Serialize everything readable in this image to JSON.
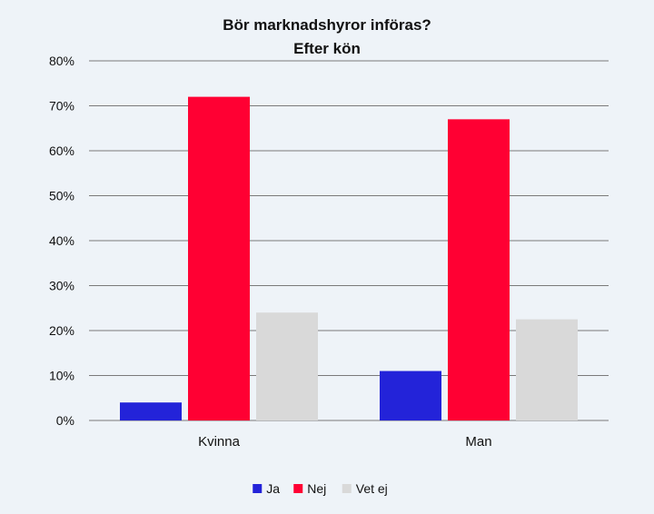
{
  "chart_data": {
    "type": "bar",
    "title": "Bör marknadshyror införas?",
    "subtitle": "Efter kön",
    "categories": [
      "Kvinna",
      "Man"
    ],
    "series": [
      {
        "name": "Ja",
        "color": "#2323d9",
        "values": [
          4,
          11
        ]
      },
      {
        "name": "Nej",
        "color": "#ff0033",
        "values": [
          72,
          67
        ]
      },
      {
        "name": "Vet ej",
        "color": "#d9d9d9",
        "values": [
          24,
          22.5
        ]
      }
    ],
    "y_ticks": [
      "0%",
      "10%",
      "20%",
      "30%",
      "40%",
      "50%",
      "60%",
      "70%",
      "80%"
    ],
    "ylim": [
      0,
      80
    ],
    "xlabel": "",
    "ylabel": "",
    "grid": true,
    "legend_position": "bottom"
  }
}
